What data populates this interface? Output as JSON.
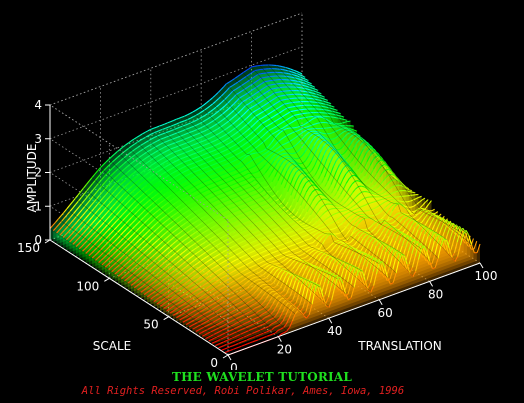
{
  "banner": {
    "title": "THE WAVELET TUTORIAL",
    "credit": "All Rights Reserved, Robi Polikar, Ames, Iowa, 1996"
  },
  "chart_data": {
    "type": "surface",
    "title": "",
    "xlabel": "TRANSLATION",
    "ylabel": "SCALE",
    "zlabel": "AMPLITUDE",
    "xlim": [
      0,
      100
    ],
    "ylim": [
      0,
      150
    ],
    "zlim": [
      0,
      4
    ],
    "xticks": [
      "0",
      "20",
      "40",
      "60",
      "80",
      "100"
    ],
    "yticks": [
      "0",
      "50",
      "100",
      "150"
    ],
    "zticks": [
      "0",
      "1",
      "2",
      "3",
      "4"
    ],
    "grid": true,
    "colormap": "hsv",
    "surface_profile": {
      "translation": [
        0,
        10,
        20,
        30,
        40,
        50,
        60,
        70,
        80,
        90,
        100
      ],
      "max_amplitude_at_scale_150": [
        0.4,
        1.0,
        1.6,
        2.1,
        2.6,
        3.0,
        3.3,
        3.6,
        3.4,
        2.8,
        2.2
      ],
      "low_scale_oscillating_band": [
        20,
        100
      ]
    }
  }
}
